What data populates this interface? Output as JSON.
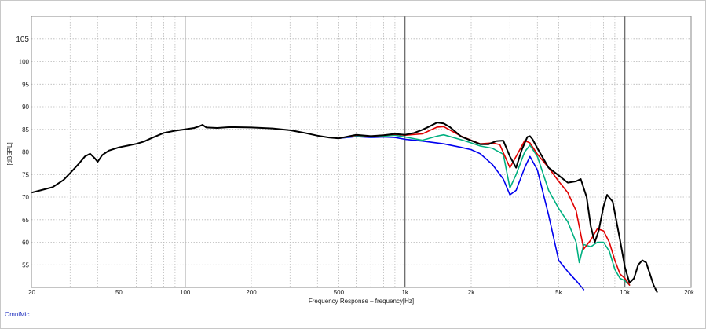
{
  "chart_data": {
    "type": "line",
    "x_scale": "log",
    "xlim": [
      20,
      20000
    ],
    "ylim": [
      50,
      110
    ],
    "grid": true,
    "xlabel": "Frequency Response – frequency[Hz]",
    "ylabel": "[dBSPL]",
    "x_ticks": [
      {
        "value": 20,
        "label": "20"
      },
      {
        "value": 50,
        "label": "50"
      },
      {
        "value": 100,
        "label": "100"
      },
      {
        "value": 200,
        "label": "200"
      },
      {
        "value": 500,
        "label": "500"
      },
      {
        "value": 1000,
        "label": "1k"
      },
      {
        "value": 2000,
        "label": "2k"
      },
      {
        "value": 5000,
        "label": "5k"
      },
      {
        "value": 10000,
        "label": "10k"
      },
      {
        "value": 20000,
        "label": "20k"
      }
    ],
    "y_ticks": [
      {
        "value": 105,
        "label": "105",
        "major": true
      },
      {
        "value": 100,
        "label": "100"
      },
      {
        "value": 95,
        "label": "95"
      },
      {
        "value": 90,
        "label": "90"
      },
      {
        "value": 85,
        "label": "85"
      },
      {
        "value": 80,
        "label": "80"
      },
      {
        "value": 75,
        "label": "75"
      },
      {
        "value": 70,
        "label": "70"
      },
      {
        "value": 65,
        "label": "65"
      },
      {
        "value": 60,
        "label": "60"
      },
      {
        "value": 55,
        "label": "55"
      }
    ],
    "series": [
      {
        "color": "#0000ee",
        "points": [
          [
            500,
            83
          ],
          [
            600,
            83.4
          ],
          [
            700,
            83.2
          ],
          [
            800,
            83.3
          ],
          [
            900,
            83.2
          ],
          [
            1000,
            82.8
          ],
          [
            1200,
            82.4
          ],
          [
            1500,
            81.8
          ],
          [
            1800,
            81
          ],
          [
            2000,
            80.5
          ],
          [
            2200,
            79.6
          ],
          [
            2500,
            77.2
          ],
          [
            2800,
            74
          ],
          [
            3000,
            70.5
          ],
          [
            3200,
            71.5
          ],
          [
            3500,
            76.5
          ],
          [
            3700,
            79
          ],
          [
            4000,
            76
          ],
          [
            4500,
            66
          ],
          [
            5000,
            56
          ],
          [
            5500,
            53.5
          ],
          [
            6000,
            51.5
          ],
          [
            6500,
            49.5
          ]
        ]
      },
      {
        "color": "#00b080",
        "points": [
          [
            500,
            83
          ],
          [
            600,
            83.6
          ],
          [
            700,
            83.3
          ],
          [
            800,
            83.5
          ],
          [
            900,
            83.7
          ],
          [
            1000,
            83.3
          ],
          [
            1200,
            82.6
          ],
          [
            1400,
            83.5
          ],
          [
            1500,
            83.8
          ],
          [
            1800,
            82.7
          ],
          [
            2000,
            82
          ],
          [
            2200,
            81.3
          ],
          [
            2500,
            80.8
          ],
          [
            2800,
            79.5
          ],
          [
            3000,
            72
          ],
          [
            3200,
            75
          ],
          [
            3500,
            80
          ],
          [
            3700,
            81.5
          ],
          [
            4000,
            79
          ],
          [
            4500,
            71.5
          ],
          [
            5000,
            67.5
          ],
          [
            5500,
            64.5
          ],
          [
            6000,
            60
          ],
          [
            6200,
            55.5
          ],
          [
            6500,
            59.5
          ],
          [
            7000,
            59
          ],
          [
            7500,
            60
          ],
          [
            8000,
            60
          ],
          [
            8500,
            58
          ],
          [
            9000,
            54
          ],
          [
            9500,
            52
          ],
          [
            10000,
            51.5
          ],
          [
            10500,
            50.5
          ]
        ]
      },
      {
        "color": "#e00000",
        "points": [
          [
            500,
            83
          ],
          [
            600,
            83.7
          ],
          [
            700,
            83.5
          ],
          [
            800,
            83.7
          ],
          [
            900,
            83.9
          ],
          [
            1000,
            83.7
          ],
          [
            1200,
            84
          ],
          [
            1400,
            85.5
          ],
          [
            1500,
            85.6
          ],
          [
            1800,
            83.5
          ],
          [
            2000,
            82.6
          ],
          [
            2200,
            81.8
          ],
          [
            2500,
            82
          ],
          [
            2700,
            81.6
          ],
          [
            3000,
            76.5
          ],
          [
            3200,
            79
          ],
          [
            3500,
            82.5
          ],
          [
            3700,
            82
          ],
          [
            4000,
            79.5
          ],
          [
            4500,
            76.5
          ],
          [
            5000,
            73.5
          ],
          [
            5500,
            71
          ],
          [
            6000,
            67
          ],
          [
            6500,
            58.5
          ],
          [
            7000,
            60.5
          ],
          [
            7500,
            63
          ],
          [
            8000,
            62.5
          ],
          [
            8500,
            60
          ],
          [
            9000,
            56
          ],
          [
            9500,
            53
          ],
          [
            10000,
            52
          ],
          [
            10500,
            50.5
          ]
        ]
      },
      {
        "color": "#000000",
        "points": [
          [
            20,
            71
          ],
          [
            22,
            71.5
          ],
          [
            25,
            72.2
          ],
          [
            28,
            73.8
          ],
          [
            30,
            75.3
          ],
          [
            33,
            77.5
          ],
          [
            35,
            79
          ],
          [
            37,
            79.6
          ],
          [
            39,
            78.5
          ],
          [
            40,
            77.8
          ],
          [
            42,
            79.3
          ],
          [
            45,
            80.3
          ],
          [
            50,
            81
          ],
          [
            55,
            81.4
          ],
          [
            60,
            81.8
          ],
          [
            65,
            82.3
          ],
          [
            70,
            83
          ],
          [
            80,
            84.2
          ],
          [
            90,
            84.7
          ],
          [
            100,
            85
          ],
          [
            110,
            85.3
          ],
          [
            115,
            85.6
          ],
          [
            120,
            86
          ],
          [
            125,
            85.4
          ],
          [
            140,
            85.3
          ],
          [
            160,
            85.5
          ],
          [
            200,
            85.4
          ],
          [
            250,
            85.2
          ],
          [
            300,
            84.8
          ],
          [
            350,
            84.2
          ],
          [
            400,
            83.6
          ],
          [
            450,
            83.2
          ],
          [
            500,
            83
          ],
          [
            600,
            83.8
          ],
          [
            700,
            83.5
          ],
          [
            800,
            83.7
          ],
          [
            900,
            84
          ],
          [
            1000,
            83.8
          ],
          [
            1100,
            84.2
          ],
          [
            1200,
            84.9
          ],
          [
            1300,
            85.7
          ],
          [
            1400,
            86.5
          ],
          [
            1500,
            86.3
          ],
          [
            1600,
            85.5
          ],
          [
            1800,
            83.4
          ],
          [
            2000,
            82.5
          ],
          [
            2200,
            81.7
          ],
          [
            2400,
            81.7
          ],
          [
            2600,
            82.4
          ],
          [
            2800,
            82.5
          ],
          [
            3000,
            79
          ],
          [
            3200,
            76.5
          ],
          [
            3400,
            80.5
          ],
          [
            3600,
            83.3
          ],
          [
            3700,
            83.5
          ],
          [
            3800,
            82.8
          ],
          [
            4000,
            80.8
          ],
          [
            4500,
            76.5
          ],
          [
            5000,
            74.8
          ],
          [
            5500,
            73.2
          ],
          [
            6000,
            73.5
          ],
          [
            6300,
            74
          ],
          [
            6700,
            70
          ],
          [
            7000,
            63.5
          ],
          [
            7300,
            60
          ],
          [
            7600,
            62.5
          ],
          [
            8000,
            68
          ],
          [
            8300,
            70.5
          ],
          [
            8800,
            69
          ],
          [
            9500,
            60.5
          ],
          [
            10000,
            54.5
          ],
          [
            10500,
            51
          ],
          [
            11000,
            52
          ],
          [
            11500,
            55
          ],
          [
            12000,
            56
          ],
          [
            12500,
            55.5
          ],
          [
            13000,
            53
          ],
          [
            13500,
            50.5
          ],
          [
            14000,
            49
          ]
        ]
      }
    ]
  },
  "footer": {
    "text": "OmniMic"
  }
}
